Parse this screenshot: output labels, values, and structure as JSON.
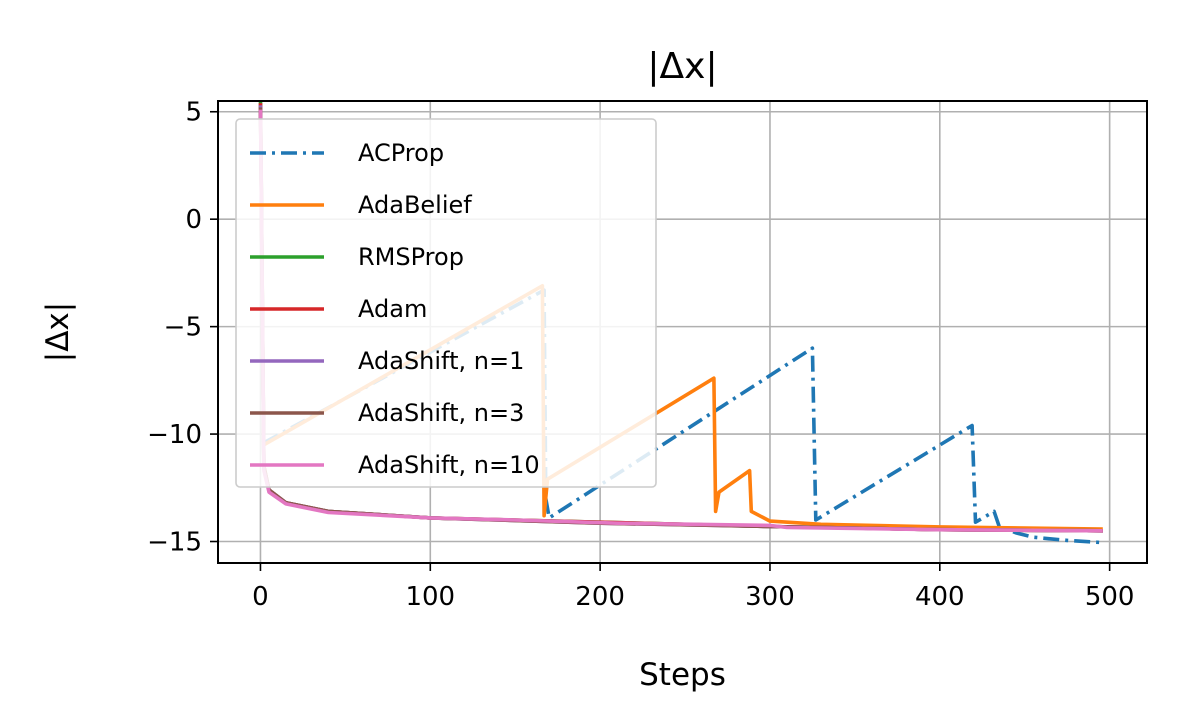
{
  "chart_data": {
    "type": "line",
    "title": "|Δx|",
    "xlabel": "Steps",
    "ylabel": "|Δx|",
    "xlim": [
      -25,
      522
    ],
    "ylim": [
      -16.0,
      5.5
    ],
    "xticks": [
      0,
      100,
      200,
      300,
      400,
      500
    ],
    "xtick_labels": [
      "0",
      "100",
      "200",
      "300",
      "400",
      "500"
    ],
    "yticks": [
      5,
      0,
      -5,
      -10,
      -15
    ],
    "ytick_labels": [
      "5",
      "0",
      "−5",
      "−10",
      "−15"
    ],
    "grid": true,
    "legend_position": "upper-left",
    "series": [
      {
        "name": "ACProp",
        "color": "#1f77b4",
        "dash": "dashdot",
        "points": [
          [
            2,
            -10.4
          ],
          [
            167,
            -3.3
          ],
          [
            168,
            -13.0
          ],
          [
            170,
            -13.9
          ],
          [
            325,
            -6.0
          ],
          [
            327,
            -14.0
          ],
          [
            419,
            -9.6
          ],
          [
            421,
            -14.1
          ],
          [
            432,
            -13.6
          ],
          [
            435,
            -14.3
          ],
          [
            445,
            -14.6
          ],
          [
            455,
            -14.8
          ],
          [
            475,
            -14.95
          ],
          [
            496,
            -15.05
          ]
        ]
      },
      {
        "name": "AdaBelief",
        "color": "#ff7f0e",
        "dash": "solid",
        "points": [
          [
            2,
            -10.5
          ],
          [
            166,
            -3.1
          ],
          [
            167,
            -13.8
          ],
          [
            169,
            -12.1
          ],
          [
            267,
            -7.4
          ],
          [
            268,
            -13.6
          ],
          [
            270,
            -12.7
          ],
          [
            288,
            -11.7
          ],
          [
            289,
            -13.6
          ],
          [
            300,
            -14.05
          ],
          [
            330,
            -14.2
          ],
          [
            400,
            -14.32
          ],
          [
            496,
            -14.42
          ]
        ]
      },
      {
        "name": "RMSProp",
        "color": "#2ca02c",
        "dash": "solid",
        "points": [
          [
            0,
            5.5
          ],
          [
            2,
            -11.5
          ],
          [
            5,
            -12.6
          ],
          [
            15,
            -13.2
          ],
          [
            40,
            -13.6
          ],
          [
            100,
            -13.9
          ],
          [
            200,
            -14.1
          ],
          [
            300,
            -14.3
          ],
          [
            400,
            -14.45
          ],
          [
            496,
            -14.5
          ]
        ]
      },
      {
        "name": "Adam",
        "color": "#d62728",
        "dash": "solid",
        "points": [
          [
            0,
            5.4
          ],
          [
            2,
            -11.5
          ],
          [
            5,
            -12.6
          ],
          [
            15,
            -13.2
          ],
          [
            40,
            -13.6
          ],
          [
            100,
            -13.9
          ],
          [
            200,
            -14.1
          ],
          [
            300,
            -14.3
          ],
          [
            400,
            -14.45
          ],
          [
            496,
            -14.5
          ]
        ]
      },
      {
        "name": "AdaShift, n=1",
        "color": "#9467bd",
        "dash": "solid",
        "points": [
          [
            0,
            5.3
          ],
          [
            2,
            -11.6
          ],
          [
            5,
            -12.6
          ],
          [
            15,
            -13.2
          ],
          [
            40,
            -13.6
          ],
          [
            100,
            -13.9
          ],
          [
            200,
            -14.15
          ],
          [
            300,
            -14.3
          ],
          [
            400,
            -14.45
          ],
          [
            496,
            -14.5
          ]
        ]
      },
      {
        "name": "AdaShift, n=3",
        "color": "#8c564b",
        "dash": "solid",
        "points": [
          [
            0,
            5.2
          ],
          [
            2,
            -11.6
          ],
          [
            5,
            -12.6
          ],
          [
            15,
            -13.2
          ],
          [
            40,
            -13.6
          ],
          [
            100,
            -13.9
          ],
          [
            200,
            -14.15
          ],
          [
            300,
            -14.3
          ],
          [
            400,
            -14.45
          ],
          [
            496,
            -14.5
          ]
        ]
      },
      {
        "name": "AdaShift, n=10",
        "color": "#e377c2",
        "dash": "solid",
        "points": [
          [
            0,
            5.1
          ],
          [
            2,
            -11.7
          ],
          [
            5,
            -12.7
          ],
          [
            15,
            -13.25
          ],
          [
            40,
            -13.65
          ],
          [
            100,
            -13.9
          ],
          [
            150,
            -14.0
          ],
          [
            210,
            -14.15
          ],
          [
            300,
            -14.25
          ],
          [
            310,
            -14.35
          ],
          [
            400,
            -14.45
          ],
          [
            496,
            -14.5
          ]
        ]
      }
    ]
  }
}
